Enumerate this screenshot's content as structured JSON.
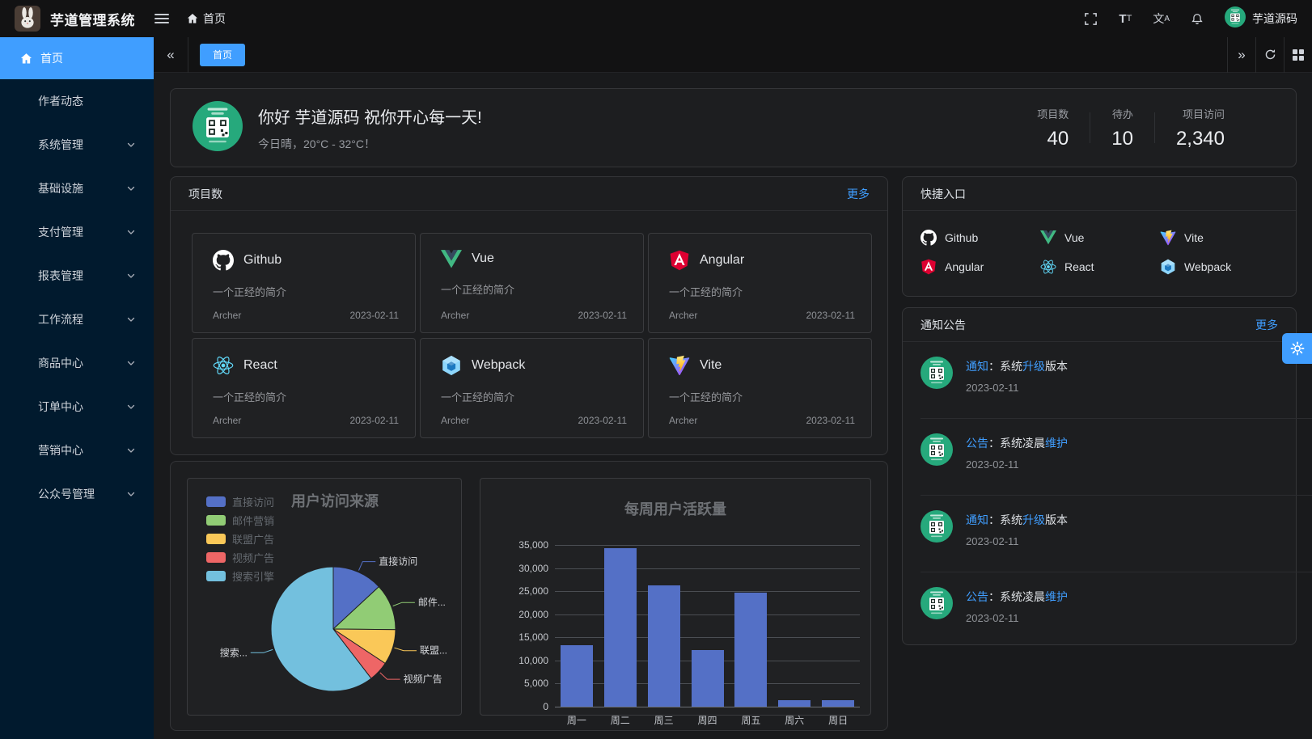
{
  "header": {
    "app_title": "芋道管理系统",
    "breadcrumb_home": "首页",
    "user_name": "芋道源码"
  },
  "sidebar": {
    "active": {
      "label": "首页"
    },
    "items": [
      {
        "label": "作者动态",
        "has_children": false
      },
      {
        "label": "系统管理",
        "has_children": true
      },
      {
        "label": "基础设施",
        "has_children": true
      },
      {
        "label": "支付管理",
        "has_children": true
      },
      {
        "label": "报表管理",
        "has_children": true
      },
      {
        "label": "工作流程",
        "has_children": true
      },
      {
        "label": "商品中心",
        "has_children": true
      },
      {
        "label": "订单中心",
        "has_children": true
      },
      {
        "label": "营销中心",
        "has_children": true
      },
      {
        "label": "公众号管理",
        "has_children": true
      }
    ]
  },
  "tabbar": {
    "active_tab": "首页"
  },
  "welcome": {
    "greeting": "你好 芋道源码 祝你开心每一天!",
    "weather": "今日晴，20°C - 32°C！",
    "stats": [
      {
        "label": "项目数",
        "value": "40"
      },
      {
        "label": "待办",
        "value": "10"
      },
      {
        "label": "项目访问",
        "value": "2,340"
      }
    ]
  },
  "projects": {
    "title": "项目数",
    "more_label": "更多",
    "items": [
      {
        "name": "Github",
        "icon": "github",
        "desc": "一个正经的简介",
        "author": "Archer",
        "date": "2023-02-11"
      },
      {
        "name": "Vue",
        "icon": "vue",
        "desc": "一个正经的简介",
        "author": "Archer",
        "date": "2023-02-11"
      },
      {
        "name": "Angular",
        "icon": "angular",
        "desc": "一个正经的简介",
        "author": "Archer",
        "date": "2023-02-11"
      },
      {
        "name": "React",
        "icon": "react",
        "desc": "一个正经的简介",
        "author": "Archer",
        "date": "2023-02-11"
      },
      {
        "name": "Webpack",
        "icon": "webpack",
        "desc": "一个正经的简介",
        "author": "Archer",
        "date": "2023-02-11"
      },
      {
        "name": "Vite",
        "icon": "vite",
        "desc": "一个正经的简介",
        "author": "Archer",
        "date": "2023-02-11"
      }
    ]
  },
  "shortcuts": {
    "title": "快捷入口",
    "items": [
      {
        "name": "Github",
        "icon": "github"
      },
      {
        "name": "Vue",
        "icon": "vue"
      },
      {
        "name": "Vite",
        "icon": "vite"
      },
      {
        "name": "Angular",
        "icon": "angular"
      },
      {
        "name": "React",
        "icon": "react"
      },
      {
        "name": "Webpack",
        "icon": "webpack"
      }
    ]
  },
  "notices": {
    "title": "通知公告",
    "more_label": "更多",
    "items": [
      {
        "segments": [
          {
            "text": "通知",
            "highlight": true
          },
          {
            "text": "：系统",
            "highlight": false
          },
          {
            "text": "升级",
            "highlight": true
          },
          {
            "text": "版本",
            "highlight": false
          }
        ],
        "date": "2023-02-11"
      },
      {
        "segments": [
          {
            "text": "公告",
            "highlight": true
          },
          {
            "text": "：系统凌晨",
            "highlight": false
          },
          {
            "text": "维护",
            "highlight": true
          }
        ],
        "date": "2023-02-11"
      },
      {
        "segments": [
          {
            "text": "通知",
            "highlight": true
          },
          {
            "text": "：系统",
            "highlight": false
          },
          {
            "text": "升级",
            "highlight": true
          },
          {
            "text": "版本",
            "highlight": false
          }
        ],
        "date": "2023-02-11"
      },
      {
        "segments": [
          {
            "text": "公告",
            "highlight": true
          },
          {
            "text": "：系统凌晨",
            "highlight": false
          },
          {
            "text": "维护",
            "highlight": true
          }
        ],
        "date": "2023-02-11"
      }
    ]
  },
  "chart_data": [
    {
      "type": "pie",
      "title": "用户访问来源",
      "labels": [
        "直接访问",
        "邮件营销",
        "联盟广告",
        "视频广告",
        "搜索引擎"
      ],
      "values": [
        335,
        310,
        234,
        135,
        1548
      ],
      "colors": [
        "#5470c6",
        "#91cc75",
        "#fac858",
        "#ee6666",
        "#73c0de"
      ],
      "callout_labels": [
        "直接访问",
        "邮件...",
        "联盟...",
        "视频广告",
        "搜索..."
      ],
      "legend_position": "left"
    },
    {
      "type": "bar",
      "title": "每周用户活跃量",
      "categories": [
        "周一",
        "周二",
        "周三",
        "周四",
        "周五",
        "周六",
        "周日"
      ],
      "values": [
        13253,
        34235,
        26321,
        12340,
        24643,
        1322,
        1324
      ],
      "xlabel": "",
      "ylabel": "",
      "ylim": [
        0,
        35000
      ],
      "ytick_step": 5000,
      "bar_color": "#5470c6",
      "grid": true
    }
  ],
  "colors": {
    "accent": "#409eff",
    "sidebar_bg": "#011a2e",
    "panel_bg": "#1d1e20"
  }
}
